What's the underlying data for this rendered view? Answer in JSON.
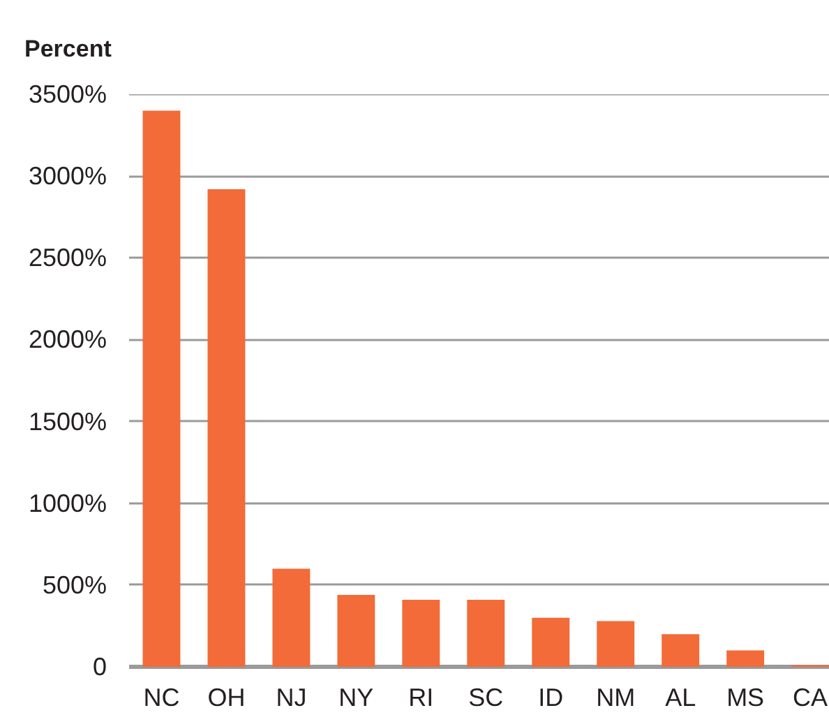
{
  "chart_data": {
    "type": "bar",
    "ylabel": "Percent",
    "categories": [
      "NC",
      "OH",
      "NJ",
      "NY",
      "RI",
      "SC",
      "ID",
      "NM",
      "AL",
      "MS",
      "CA"
    ],
    "values": [
      3400,
      2920,
      600,
      440,
      410,
      410,
      300,
      280,
      200,
      100,
      10
    ],
    "color": "#f26b38",
    "ylim": [
      0,
      3500
    ],
    "yticks": [
      0,
      {
        "value": 500,
        "label": "500%"
      },
      {
        "value": 1000,
        "label": "1000%"
      },
      {
        "value": 1500,
        "label": "1500%"
      },
      {
        "value": 2000,
        "label": "2000%"
      },
      {
        "value": 2500,
        "label": "2500%"
      },
      {
        "value": 3000,
        "label": "3000%"
      },
      {
        "value": 3500,
        "label": "3500%"
      }
    ],
    "grid": "y"
  }
}
